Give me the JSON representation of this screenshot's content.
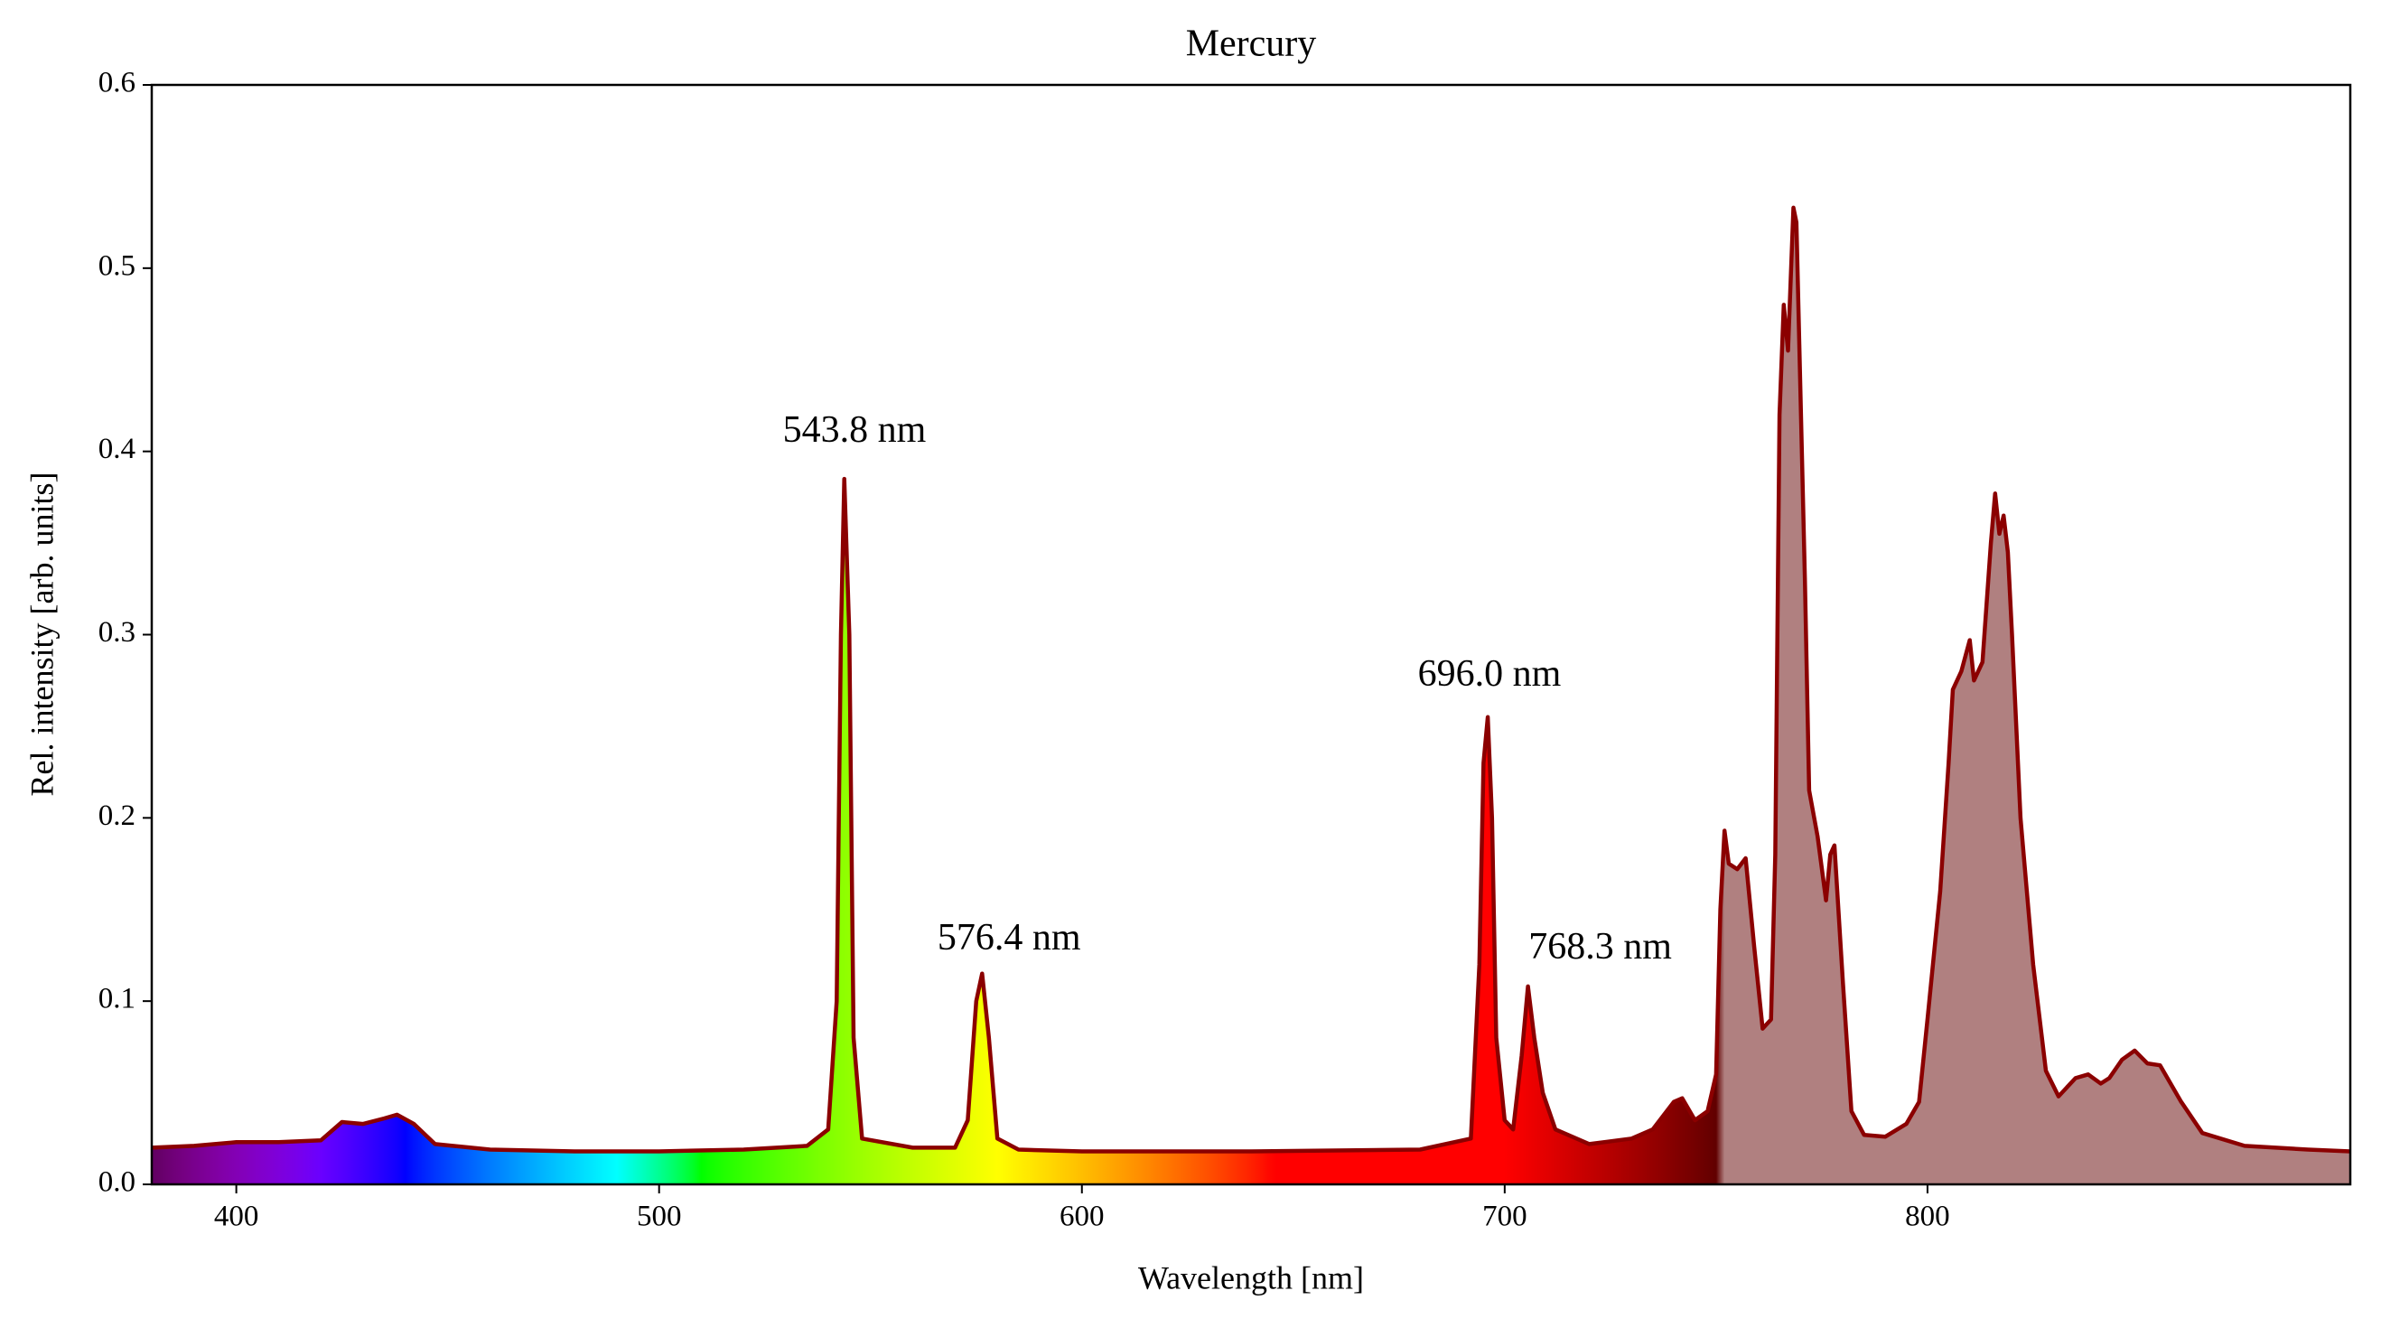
{
  "chart_data": {
    "type": "spectrum",
    "title": "Mercury",
    "x_label": "Wavelength [nm]",
    "y_label": "Rel. intensity [arb. units]",
    "line_color": "#8b0000",
    "fill": "spectrum",
    "fill_color": "#b08080",
    "xlim": [
      380,
      900
    ],
    "ylim": [
      0,
      0.6
    ],
    "xticks": [
      400,
      500,
      600,
      700,
      800
    ],
    "yticks": [
      {
        "value": 0,
        "label": "0.0"
      },
      0.1,
      0.2,
      0.3,
      0.4,
      0.5,
      0.6
    ],
    "annotations": [
      {
        "text": "543.8 nm",
        "x": 546.2,
        "y": 0.41
      },
      {
        "text": "576.4 nm",
        "x": 582.8,
        "y": 0.133
      },
      {
        "text": "696.0 nm",
        "x": 696.4,
        "y": 0.277
      },
      {
        "text": "768.3 nm",
        "x": 722.6,
        "y": 0.128
      }
    ],
    "x": [
      380,
      390,
      400,
      410,
      420,
      425,
      430,
      435,
      438,
      442,
      447,
      460,
      480,
      500,
      520,
      535,
      540,
      542,
      543,
      543.8,
      545,
      546,
      548,
      560,
      570,
      573,
      575,
      576.4,
      578,
      580,
      585,
      600,
      640,
      680,
      692,
      694,
      695,
      696.0,
      697,
      698,
      700,
      702,
      704,
      705.5,
      707,
      709,
      712,
      720,
      730,
      735,
      740,
      742,
      745,
      748,
      750,
      751,
      752,
      753,
      755,
      757,
      759,
      761,
      763,
      764,
      765,
      766,
      767,
      768.3,
      769,
      771,
      772,
      774,
      776,
      777,
      778,
      780,
      782,
      785,
      790,
      795,
      798,
      800,
      803,
      805,
      806,
      808,
      810,
      811,
      813,
      815,
      816,
      817,
      818,
      819,
      820,
      822,
      825,
      828,
      831,
      835,
      838,
      841,
      843,
      846,
      849,
      852,
      855,
      860,
      865,
      875,
      890,
      900
    ],
    "y": [
      0.02,
      0.021,
      0.023,
      0.023,
      0.024,
      0.034,
      0.033,
      0.036,
      0.038,
      0.033,
      0.022,
      0.019,
      0.018,
      0.018,
      0.019,
      0.021,
      0.03,
      0.1,
      0.3,
      0.385,
      0.3,
      0.08,
      0.025,
      0.02,
      0.02,
      0.035,
      0.1,
      0.115,
      0.08,
      0.025,
      0.019,
      0.018,
      0.018,
      0.019,
      0.025,
      0.12,
      0.23,
      0.255,
      0.2,
      0.08,
      0.035,
      0.03,
      0.07,
      0.108,
      0.08,
      0.05,
      0.03,
      0.022,
      0.025,
      0.03,
      0.045,
      0.047,
      0.035,
      0.04,
      0.06,
      0.15,
      0.193,
      0.175,
      0.172,
      0.178,
      0.13,
      0.085,
      0.09,
      0.18,
      0.42,
      0.48,
      0.455,
      0.533,
      0.525,
      0.33,
      0.215,
      0.19,
      0.155,
      0.18,
      0.185,
      0.11,
      0.04,
      0.027,
      0.026,
      0.033,
      0.045,
      0.09,
      0.16,
      0.23,
      0.27,
      0.28,
      0.297,
      0.275,
      0.285,
      0.35,
      0.377,
      0.355,
      0.365,
      0.345,
      0.3,
      0.2,
      0.12,
      0.062,
      0.048,
      0.058,
      0.06,
      0.055,
      0.058,
      0.068,
      0.073,
      0.066,
      0.065,
      0.045,
      0.028,
      0.021,
      0.019,
      0.018
    ]
  }
}
